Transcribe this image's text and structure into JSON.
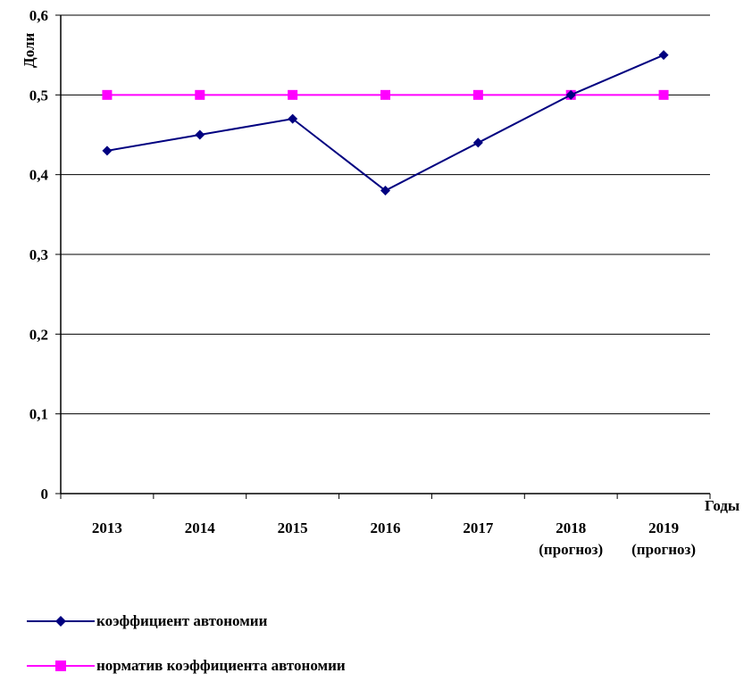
{
  "chart_data": {
    "type": "line",
    "xlabel": "Годы",
    "ylabel": "Доли",
    "ylim": [
      0,
      0.6
    ],
    "yticks": [
      "0",
      "0,1",
      "0,2",
      "0,3",
      "0,4",
      "0,5",
      "0,6"
    ],
    "categories": [
      [
        "2013"
      ],
      [
        "2014"
      ],
      [
        "2015"
      ],
      [
        "2016"
      ],
      [
        "2017"
      ],
      [
        "2018",
        "(прогноз)"
      ],
      [
        "2019",
        "(прогноз)"
      ]
    ],
    "series": [
      {
        "name": "коэффициент автономии",
        "color": "#000080",
        "marker": "diamond",
        "values": [
          0.43,
          0.45,
          0.47,
          0.38,
          0.44,
          0.5,
          0.55
        ]
      },
      {
        "name": "норматив коэффициента автономии",
        "color": "#FF00FF",
        "marker": "square",
        "values": [
          0.5,
          0.5,
          0.5,
          0.5,
          0.5,
          0.5,
          0.5
        ]
      }
    ],
    "grid": true,
    "legend_position": "bottom-left"
  }
}
